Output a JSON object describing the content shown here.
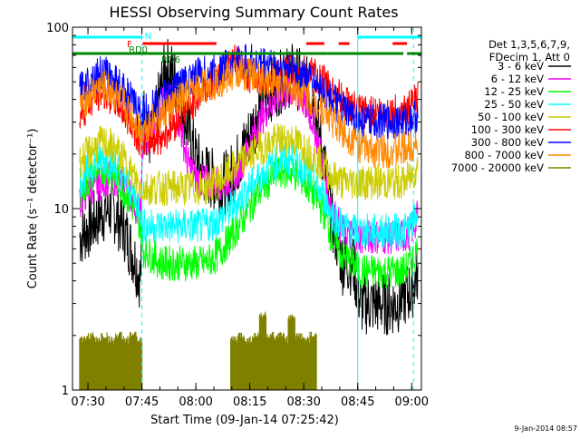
{
  "chart_data": {
    "type": "line",
    "title": "HESSI Observing Summary Count Rates",
    "xlabel": "Start Time (09-Jan-14 07:25:42)",
    "ylabel": "Count Rate (s⁻¹ detector⁻¹)",
    "yscale": "log",
    "ylim": [
      1,
      100
    ],
    "xlim_minutes": [
      0,
      97
    ],
    "y_ticks": [
      {
        "value": 1,
        "label": "1"
      },
      {
        "value": 10,
        "label": "10"
      },
      {
        "value": 100,
        "label": "100"
      }
    ],
    "x_ticks": [
      {
        "minutes": 4.3,
        "label": "07:30"
      },
      {
        "minutes": 19.3,
        "label": "07:45"
      },
      {
        "minutes": 34.3,
        "label": "08:00"
      },
      {
        "minutes": 49.3,
        "label": "08:15"
      },
      {
        "minutes": 64.3,
        "label": "08:30"
      },
      {
        "minutes": 79.3,
        "label": "08:45"
      },
      {
        "minutes": 94.3,
        "label": "09:00"
      }
    ],
    "legend_header": [
      "Det 1,3,5,6,7,9,",
      "FDecim 1, Att 0"
    ],
    "legend_position": "right",
    "series": [
      {
        "name": "3 - 6 keV",
        "color": "#000000",
        "minutes": [
          2,
          5,
          8,
          11,
          14,
          17,
          19,
          19.5,
          22,
          24,
          26,
          28,
          30,
          32,
          34,
          36,
          38,
          40,
          43,
          46,
          49,
          52,
          55,
          58,
          61,
          64,
          67,
          70,
          72,
          75,
          78,
          80,
          82,
          84,
          86,
          88,
          90,
          92,
          94,
          96
        ],
        "values": [
          7,
          8,
          9.5,
          10,
          8,
          5.5,
          4,
          35,
          22,
          40,
          60,
          55,
          42,
          28,
          20,
          16,
          15,
          14,
          14,
          18,
          25,
          35,
          45,
          50,
          55,
          50,
          40,
          18,
          9,
          5,
          5,
          3,
          3,
          3,
          3,
          3,
          3,
          3.3,
          3.5,
          4.5
        ]
      },
      {
        "name": "6 - 12 keV",
        "color": "#ff00ff",
        "minutes": [
          2,
          5,
          8,
          11,
          14,
          17,
          19,
          19.5,
          22,
          24,
          26,
          28,
          30,
          32,
          34,
          36,
          38,
          40,
          43,
          46,
          49,
          52,
          55,
          58,
          61,
          64,
          67,
          70,
          72,
          75,
          78,
          80,
          82,
          84,
          86,
          88,
          90,
          92,
          94,
          96
        ],
        "values": [
          11,
          13,
          14,
          15,
          14,
          11,
          9,
          22,
          25,
          35,
          40,
          38,
          28,
          18,
          15,
          14,
          14,
          14,
          14,
          16,
          22,
          30,
          38,
          42,
          45,
          40,
          30,
          16,
          10,
          7.5,
          7,
          7,
          7,
          7,
          7,
          7,
          7,
          7,
          7.5,
          9
        ]
      },
      {
        "name": "12 - 25 keV",
        "color": "#00ff00",
        "minutes": [
          2,
          5,
          8,
          11,
          14,
          17,
          19,
          19.5,
          22,
          25,
          28,
          31,
          34,
          37,
          40,
          43,
          46,
          49,
          52,
          55,
          58,
          61,
          64,
          67,
          70,
          72,
          75,
          78,
          80,
          82,
          84,
          86,
          88,
          90,
          92,
          94,
          96
        ],
        "values": [
          12,
          15,
          17,
          16,
          13,
          10,
          8,
          6,
          5.5,
          5,
          5,
          5,
          5,
          5,
          5.5,
          6.5,
          8,
          10,
          12.5,
          14.5,
          16,
          16,
          14.5,
          12,
          9.5,
          7,
          5.5,
          5,
          4.5,
          4.5,
          4.5,
          4.5,
          4.5,
          4.5,
          4.5,
          5,
          6
        ]
      },
      {
        "name": "25 - 50 keV",
        "color": "#00ffff",
        "minutes": [
          2,
          5,
          8,
          11,
          14,
          17,
          19,
          19.5,
          22,
          25,
          28,
          31,
          34,
          37,
          40,
          43,
          46,
          49,
          52,
          55,
          58,
          61,
          64,
          67,
          70,
          72,
          75,
          78,
          80,
          82,
          84,
          86,
          88,
          90,
          92,
          94,
          96
        ],
        "values": [
          14,
          17,
          19,
          18,
          15,
          12,
          10,
          8,
          8,
          8,
          8,
          8,
          8,
          8,
          8.5,
          9.5,
          11,
          13,
          15,
          17,
          18.5,
          18.5,
          17,
          14,
          11.5,
          9.5,
          8,
          7.5,
          7.5,
          7.5,
          7.5,
          7.5,
          7.5,
          7.5,
          7.5,
          8,
          9.5
        ]
      },
      {
        "name": "50 - 100 keV",
        "color": "#cccc00",
        "minutes": [
          2,
          5,
          8,
          11,
          14,
          17,
          19,
          19.5,
          22,
          25,
          28,
          31,
          34,
          37,
          40,
          43,
          46,
          49,
          52,
          55,
          58,
          61,
          64,
          67,
          70,
          72,
          75,
          78,
          80,
          82,
          84,
          86,
          88,
          90,
          92,
          94,
          96
        ],
        "values": [
          18,
          21,
          23,
          22,
          19,
          15,
          13,
          13,
          13,
          13,
          13,
          13,
          13,
          13,
          14,
          15.5,
          17.5,
          19.5,
          21.5,
          23,
          24,
          24,
          22,
          19.5,
          17,
          15,
          14,
          14,
          14,
          14,
          14,
          14,
          14,
          14,
          14,
          15,
          17
        ]
      },
      {
        "name": "100 - 300 keV",
        "color": "#ff0000",
        "minutes": [
          2,
          5,
          8,
          11,
          14,
          17,
          19,
          19.5,
          22,
          25,
          28,
          31,
          34,
          37,
          40,
          43,
          46,
          49,
          52,
          55,
          58,
          61,
          64,
          67,
          70,
          72,
          75,
          78,
          80,
          82,
          84,
          86,
          88,
          90,
          92,
          94,
          96
        ],
        "values": [
          33,
          39,
          44,
          41,
          35,
          28,
          24,
          24,
          24,
          25,
          29,
          34,
          40,
          46,
          52,
          60,
          66,
          54,
          52,
          53,
          56,
          58,
          57,
          54,
          50,
          45,
          40,
          36,
          34,
          34,
          34,
          34,
          34,
          34,
          34,
          36,
          40
        ]
      },
      {
        "name": "300 - 800 keV",
        "color": "#0000ff",
        "minutes": [
          2,
          5,
          8,
          11,
          14,
          17,
          19,
          19.5,
          22,
          25,
          28,
          31,
          34,
          37,
          40,
          43,
          46,
          49,
          52,
          55,
          58,
          61,
          64,
          67,
          70,
          72,
          75,
          78,
          80,
          82,
          84,
          86,
          88,
          90,
          92,
          94,
          96
        ],
        "values": [
          45,
          52,
          56,
          53,
          46,
          38,
          33,
          34,
          36,
          40,
          45,
          50,
          54,
          56,
          58,
          61,
          64,
          65,
          63,
          62,
          60,
          58,
          55,
          50,
          44,
          40,
          35,
          32,
          30,
          30,
          30,
          30,
          30,
          30,
          30,
          31,
          33
        ]
      },
      {
        "name": "800 - 7000 keV",
        "color": "#ff8800",
        "minutes": [
          2,
          5,
          8,
          11,
          14,
          17,
          19,
          19.5,
          22,
          25,
          28,
          31,
          34,
          37,
          40,
          43,
          46,
          49,
          52,
          55,
          58,
          61,
          64,
          67,
          70,
          72,
          75,
          78,
          80,
          82,
          84,
          86,
          88,
          90,
          92,
          94,
          96
        ],
        "values": [
          36,
          43,
          47,
          44,
          38,
          31,
          27,
          28,
          30,
          33,
          37,
          41,
          45,
          48,
          50,
          53,
          56,
          56,
          52,
          51,
          48,
          46,
          43,
          39,
          35,
          31,
          27,
          24,
          22,
          21,
          21,
          21,
          21,
          21,
          21,
          22,
          24
        ]
      },
      {
        "name": "7000 - 20000 keV",
        "color": "#808000",
        "minutes": [
          3,
          5,
          7,
          9,
          11,
          13,
          15,
          17,
          18.5,
          45,
          47,
          49,
          51,
          53,
          55,
          57,
          58,
          59,
          61,
          63,
          65,
          67
        ],
        "values": [
          1.9,
          2.0,
          1.9,
          2.0,
          1.9,
          2.0,
          1.9,
          2.0,
          1.9,
          1.9,
          2.0,
          1.9,
          2.0,
          2.6,
          2.0,
          1.9,
          2.0,
          1.9,
          2.5,
          2.0,
          1.9,
          2.0
        ]
      }
    ],
    "status_bars": [
      {
        "label": "N",
        "color": "#00ffff",
        "segments": [
          [
            0,
            19.3
          ],
          [
            79.3,
            97
          ]
        ]
      },
      {
        "label": "F",
        "color": "#ff0000",
        "segments": [
          [
            19.5,
            40
          ],
          [
            65,
            70
          ],
          [
            74,
            77
          ],
          [
            89,
            93
          ]
        ]
      },
      {
        "label": "RD0",
        "color": "#008800",
        "segments": [
          [
            0,
            47
          ],
          [
            47,
            71
          ],
          [
            71,
            92
          ],
          [
            93,
            97
          ]
        ]
      },
      {
        "label": "RD6",
        "color": "#008800",
        "segments": []
      }
    ],
    "vertical_markers": [
      {
        "minutes": 19.3,
        "color": "#00ffff",
        "style": "dashed"
      },
      {
        "minutes": 79.3,
        "color": "#00ffff",
        "style": "solid"
      },
      {
        "minutes": 94.8,
        "color": "#00ffff",
        "style": "dashed"
      }
    ],
    "footer_date": "9-Jan-2014 08:57"
  }
}
